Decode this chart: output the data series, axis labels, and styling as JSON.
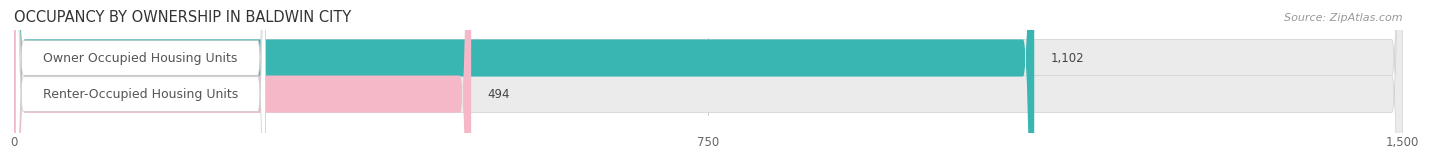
{
  "title": "OCCUPANCY BY OWNERSHIP IN BALDWIN CITY",
  "source_text": "Source: ZipAtlas.com",
  "categories": [
    "Owner Occupied Housing Units",
    "Renter-Occupied Housing Units"
  ],
  "values": [
    1102,
    494
  ],
  "bar_colors": [
    "#39b5b2",
    "#f5b8c8"
  ],
  "bar_bg_color": "#ebebeb",
  "value_labels": [
    "1,102",
    "494"
  ],
  "xlim_max": 1500,
  "xticks": [
    0,
    750,
    1500
  ],
  "xtick_labels": [
    "0",
    "750",
    "1,500"
  ],
  "title_fontsize": 10.5,
  "source_fontsize": 8,
  "bar_label_fontsize": 9,
  "value_fontsize": 8.5,
  "tick_fontsize": 8.5,
  "background_color": "#ffffff",
  "label_box_color": "#ffffff",
  "label_text_color": "#555555",
  "value_text_color": "#444444"
}
